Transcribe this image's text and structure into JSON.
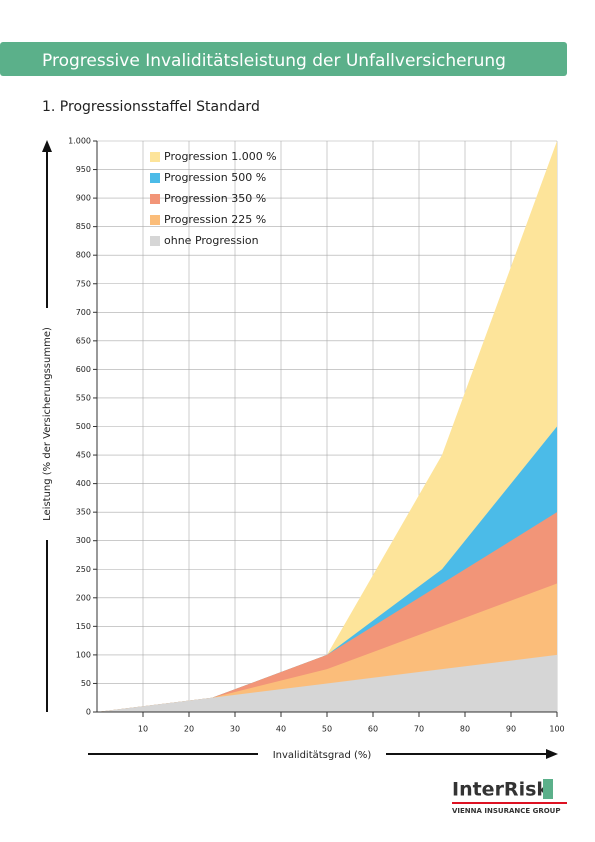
{
  "chart_data": {
    "type": "area",
    "title": "Progressive Invaliditätsleistung der Unfallversicherung",
    "subtitle": "1. Progressionsstaffel Standard",
    "x_label": "Invaliditätsgrad (%)",
    "y_label": "Leistung (% der Versicherungssumme)",
    "x": [
      0,
      25,
      50,
      75,
      90,
      100
    ],
    "series": [
      {
        "name": "Progression 1.000 %",
        "color": "#fde49a",
        "values": [
          0,
          25,
          100,
          450,
          780,
          1000
        ]
      },
      {
        "name": "Progression 500 %",
        "color": "#4bbbe8",
        "values": [
          0,
          25,
          100,
          250,
          400,
          500
        ]
      },
      {
        "name": "Progression 350 %",
        "color": "#f29578",
        "values": [
          0,
          25,
          100,
          225,
          300,
          350
        ]
      },
      {
        "name": "Progression 225 %",
        "color": "#fbbd7a",
        "values": [
          0,
          25,
          75,
          150,
          195,
          225
        ]
      },
      {
        "name": "ohne Progression",
        "color": "#d6d6d6",
        "values": [
          0,
          25,
          50,
          75,
          90,
          100
        ]
      }
    ],
    "xlim": [
      0,
      100
    ],
    "xticks": [
      10,
      20,
      30,
      40,
      50,
      60,
      70,
      80,
      90,
      100
    ],
    "ylim": [
      0,
      1000
    ],
    "yticks": [
      0,
      50,
      100,
      150,
      200,
      250,
      300,
      350,
      400,
      450,
      500,
      550,
      600,
      650,
      700,
      750,
      800,
      850,
      900,
      950,
      {
        "value": 1000,
        "label": "1.000"
      }
    ],
    "grid": true,
    "legend": "top-left"
  },
  "logo": {
    "brand": "InterRisk",
    "group": "VIENNA INSURANCE GROUP"
  }
}
